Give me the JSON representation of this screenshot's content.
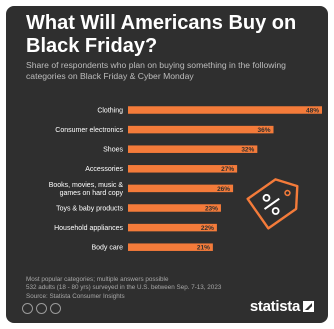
{
  "chart_data": {
    "type": "bar",
    "orientation": "horizontal",
    "title": "What Will Americans Buy on Black Friday?",
    "subtitle": "Share of respondents who plan on buying something in the following categories on Black Friday & Cyber Monday",
    "categories": [
      [
        "Clothing"
      ],
      [
        "Consumer electronics"
      ],
      [
        "Shoes"
      ],
      [
        "Accessories"
      ],
      [
        "Books, movies, music &",
        "games on hard copy"
      ],
      [
        "Toys & baby products"
      ],
      [
        "Household appliances"
      ],
      [
        "Body care"
      ]
    ],
    "values": [
      48,
      36,
      32,
      27,
      26,
      23,
      22,
      21
    ],
    "value_suffix": "%",
    "xlim": [
      0,
      48
    ],
    "grid": false,
    "bar_color": "#f47b3a"
  },
  "footer": {
    "note": "Most popular categories; multiple answers possible",
    "sample": "532 adults (18 - 80 yrs) surveyed in the U.S. between Sep. 7-13, 2023",
    "source": "Source: Statista Consumer Insights"
  },
  "brand": {
    "name": "statista"
  },
  "colors": {
    "background": "#2f2f2f",
    "accent": "#f47b3a",
    "text": "#ffffff"
  },
  "icons": [
    "price-tag-percent-icon",
    "creative-commons-icon"
  ]
}
